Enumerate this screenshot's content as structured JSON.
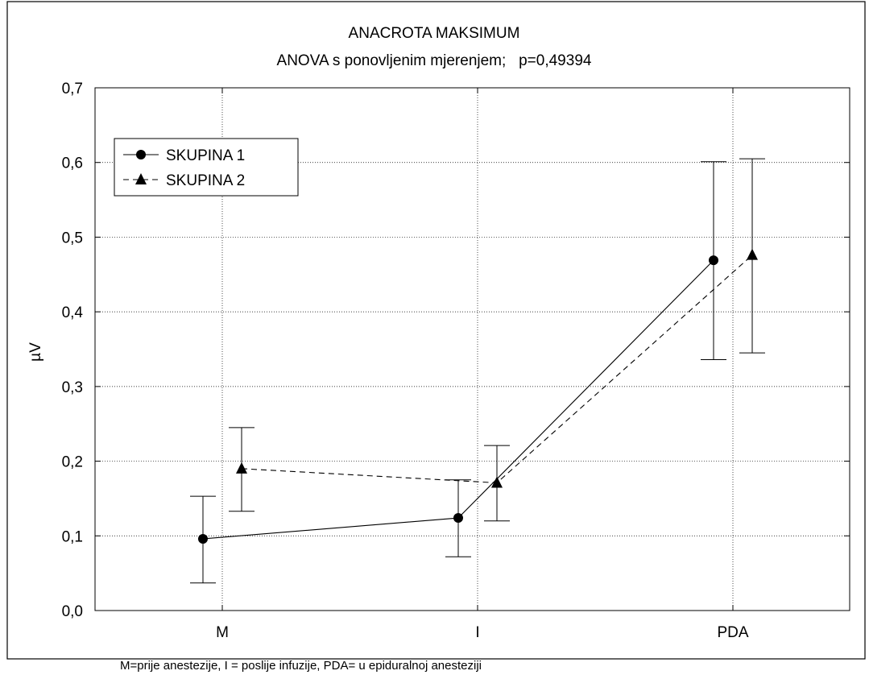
{
  "chart_data": {
    "type": "line",
    "title": "ANACROTA MAKSIMUM",
    "subtitle": "ANOVA s ponovljenim mjerenjem;   p=0,49394",
    "xlabel": "",
    "ylabel": "µV",
    "categories": [
      "M",
      "I",
      "PDA"
    ],
    "ylim": [
      0,
      0.7
    ],
    "yticks": [
      0.0,
      0.1,
      0.2,
      0.3,
      0.4,
      0.5,
      0.6,
      0.7
    ],
    "ytick_labels": [
      "0,0",
      "0,1",
      "0,2",
      "0,3",
      "0,4",
      "0,5",
      "0,6",
      "0,7"
    ],
    "grid": true,
    "legend_position": "top-left",
    "series": [
      {
        "name": "SKUPINA 1",
        "marker": "circle",
        "line_style": "solid",
        "values": [
          0.096,
          0.124,
          0.469
        ],
        "error_low": [
          0.037,
          0.072,
          0.336
        ],
        "error_high": [
          0.153,
          0.175,
          0.601
        ]
      },
      {
        "name": "SKUPINA 2",
        "marker": "triangle",
        "line_style": "dashed",
        "values": [
          0.19,
          0.171,
          0.476
        ],
        "error_low": [
          0.133,
          0.12,
          0.345
        ],
        "error_high": [
          0.245,
          0.221,
          0.605
        ]
      }
    ]
  },
  "caption": "M=prije anestezije, I = poslije infuzije, PDA= u epiduralnoj anesteziji"
}
